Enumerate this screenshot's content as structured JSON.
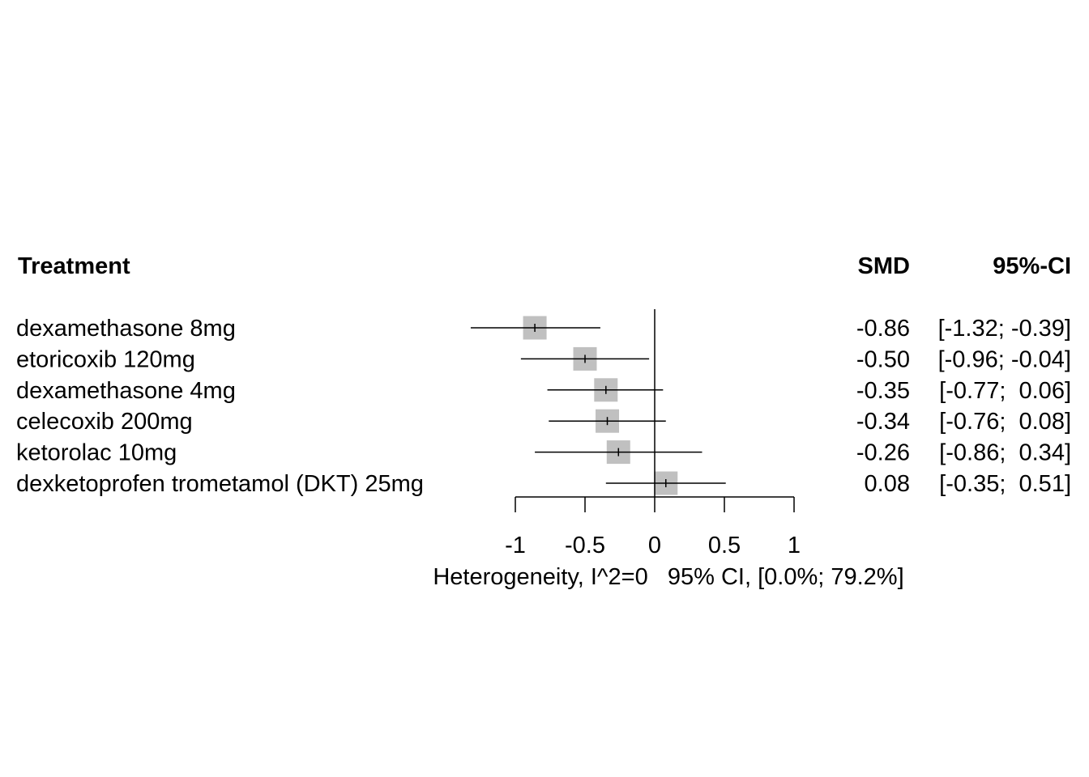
{
  "chart_data": {
    "type": "forest",
    "headers": {
      "label": "Treatment",
      "effect": "SMD",
      "ci": "95%-CI"
    },
    "rows": [
      {
        "label": "dexamethasone 8mg",
        "effect": -0.86,
        "lower": -1.32,
        "upper": -0.39,
        "effect_text": "-0.86",
        "ci_text": "[-1.32; -0.39]"
      },
      {
        "label": "etoricoxib 120mg",
        "effect": -0.5,
        "lower": -0.96,
        "upper": -0.04,
        "effect_text": "-0.50",
        "ci_text": "[-0.96; -0.04]"
      },
      {
        "label": "dexamethasone 4mg",
        "effect": -0.35,
        "lower": -0.77,
        "upper": 0.06,
        "effect_text": "-0.35",
        "ci_text": "[-0.77;  0.06]"
      },
      {
        "label": "celecoxib 200mg",
        "effect": -0.34,
        "lower": -0.76,
        "upper": 0.08,
        "effect_text": "-0.34",
        "ci_text": "[-0.76;  0.08]"
      },
      {
        "label": "ketorolac 10mg",
        "effect": -0.26,
        "lower": -0.86,
        "upper": 0.34,
        "effect_text": "-0.26",
        "ci_text": "[-0.86;  0.34]"
      },
      {
        "label": "dexketoprofen trometamol (DKT) 25mg",
        "effect": 0.08,
        "lower": -0.35,
        "upper": 0.51,
        "effect_text": "0.08",
        "ci_text": "[-0.35;  0.51]"
      }
    ],
    "xaxis": {
      "ticks": [
        -1,
        -0.5,
        0,
        0.5,
        1
      ],
      "tick_labels": [
        "-1",
        "-0.5",
        "0",
        "0.5",
        "1"
      ],
      "range": [
        -1,
        1
      ]
    },
    "reference_line": 0,
    "footnote": "Heterogeneity, I^2=0   95% CI, [0.0%; 79.2%]",
    "colors": {
      "box": "#c0c0c0",
      "line": "#000000"
    }
  }
}
